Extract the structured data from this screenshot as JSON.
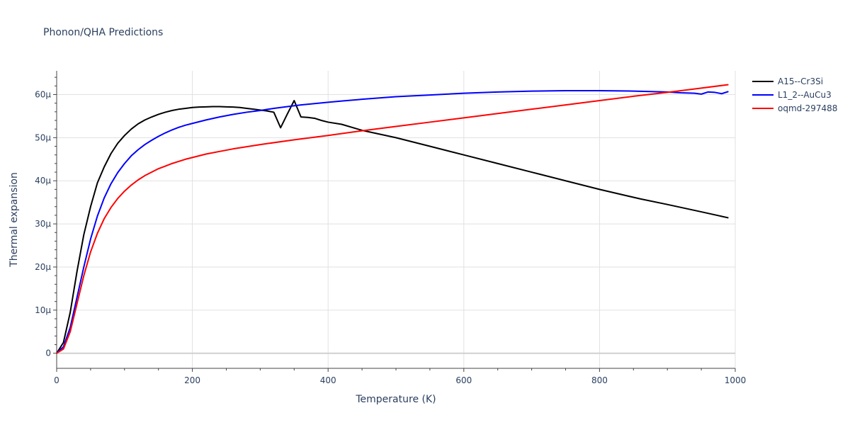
{
  "chart_data": {
    "type": "line",
    "title": "Phonon/QHA Predictions",
    "xlabel": "Temperature (K)",
    "ylabel": "Thermal expansion",
    "xlim": [
      0,
      1000
    ],
    "ylim": [
      -3.5,
      65.5
    ],
    "x_ticks": [
      0,
      200,
      400,
      600,
      800,
      1000
    ],
    "x_tick_labels": [
      "0",
      "200",
      "400",
      "600",
      "800",
      "1000"
    ],
    "y_ticks": [
      0,
      10,
      20,
      30,
      40,
      50,
      60
    ],
    "y_tick_labels": [
      "0",
      "10μ",
      "20μ",
      "30μ",
      "40μ",
      "50μ",
      "60μ"
    ],
    "grid": true,
    "legend_position": "top-right",
    "series": [
      {
        "name": "A15--Cr3Si",
        "color": "#000000",
        "x": [
          0,
          10,
          20,
          30,
          40,
          50,
          60,
          70,
          80,
          90,
          100,
          110,
          120,
          130,
          140,
          150,
          160,
          170,
          180,
          190,
          200,
          210,
          220,
          230,
          240,
          250,
          260,
          270,
          280,
          290,
          300,
          310,
          320,
          330,
          340,
          350,
          360,
          370,
          380,
          390,
          400,
          420,
          450,
          500,
          550,
          600,
          650,
          700,
          750,
          800,
          860,
          900,
          950,
          990
        ],
        "y": [
          0,
          2.5,
          9.5,
          19,
          27.5,
          34,
          39.5,
          43.2,
          46.3,
          48.7,
          50.5,
          52,
          53.2,
          54.1,
          54.8,
          55.4,
          55.9,
          56.3,
          56.6,
          56.8,
          57,
          57.1,
          57.15,
          57.2,
          57.2,
          57.15,
          57.1,
          57,
          56.8,
          56.6,
          56.4,
          56.2,
          55.9,
          52.3,
          55.5,
          58.6,
          54.8,
          54.7,
          54.5,
          54,
          53.6,
          53.1,
          51.7,
          50,
          48,
          46,
          44,
          42,
          40,
          38,
          35.8,
          34.5,
          32.8,
          31.4
        ]
      },
      {
        "name": "L1_2--AuCu3",
        "color": "#0000ff",
        "x": [
          0,
          10,
          20,
          30,
          40,
          50,
          60,
          70,
          80,
          90,
          100,
          110,
          120,
          130,
          140,
          150,
          160,
          170,
          180,
          190,
          200,
          220,
          240,
          260,
          280,
          300,
          320,
          340,
          360,
          380,
          400,
          420,
          450,
          500,
          550,
          600,
          650,
          700,
          750,
          800,
          850,
          900,
          920,
          940,
          950,
          960,
          970,
          980,
          990
        ],
        "y": [
          0,
          1.5,
          6,
          13,
          20,
          26.5,
          31.8,
          36,
          39.3,
          41.9,
          44,
          45.8,
          47.2,
          48.4,
          49.4,
          50.3,
          51.1,
          51.8,
          52.4,
          52.9,
          53.3,
          54.1,
          54.8,
          55.4,
          55.9,
          56.3,
          56.8,
          57.2,
          57.6,
          57.9,
          58.2,
          58.5,
          58.9,
          59.5,
          59.9,
          60.3,
          60.6,
          60.8,
          60.9,
          60.9,
          60.8,
          60.6,
          60.4,
          60.3,
          60.1,
          60.6,
          60.5,
          60.2,
          60.7
        ]
      },
      {
        "name": "oqmd-297488",
        "color": "#ff0000",
        "x": [
          0,
          10,
          20,
          30,
          40,
          50,
          60,
          70,
          80,
          90,
          100,
          110,
          120,
          130,
          140,
          150,
          160,
          170,
          180,
          190,
          200,
          220,
          240,
          260,
          280,
          300,
          350,
          400,
          450,
          500,
          550,
          600,
          650,
          700,
          750,
          800,
          850,
          900,
          950,
          990
        ],
        "y": [
          0,
          1,
          5,
          11.5,
          18,
          23.5,
          27.8,
          31.2,
          33.8,
          35.9,
          37.6,
          39,
          40.2,
          41.2,
          42,
          42.8,
          43.4,
          44,
          44.5,
          45,
          45.4,
          46.2,
          46.8,
          47.4,
          47.9,
          48.4,
          49.5,
          50.5,
          51.6,
          52.6,
          53.6,
          54.6,
          55.6,
          56.6,
          57.6,
          58.6,
          59.6,
          60.5,
          61.5,
          62.3
        ]
      }
    ]
  }
}
